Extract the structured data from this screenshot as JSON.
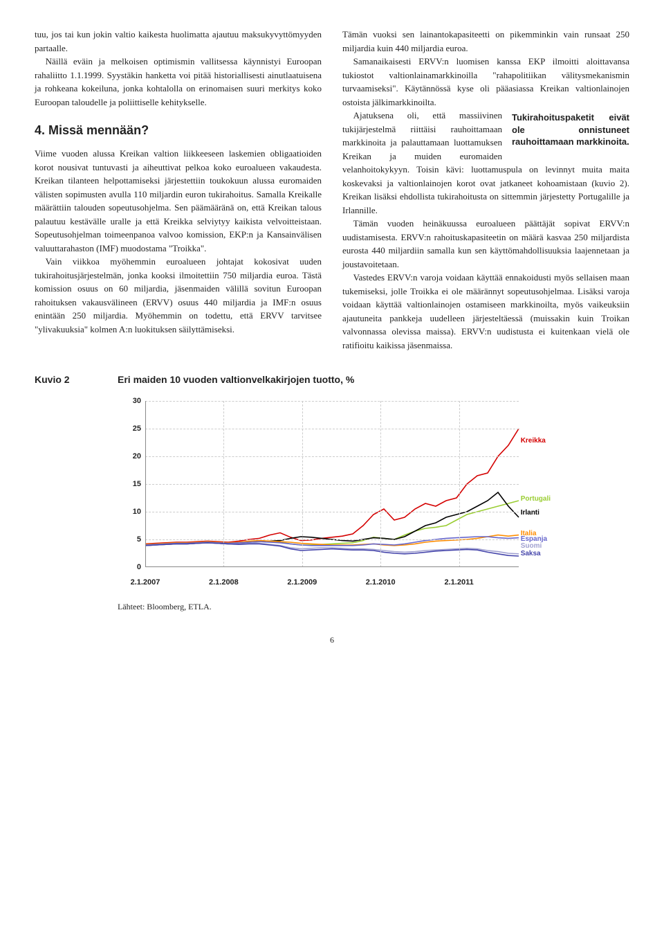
{
  "left": {
    "p1": "tuu, jos tai kun jokin valtio kaikesta huolimatta ajautuu maksukyvyttömyyden partaalle.",
    "p2": "Näillä eväin ja melkoisen optimismin vallitsessa käynnistyi Euroopan rahaliitto 1.1.1999. Syystäkin hanketta voi pitää historiallisesti ainutlaatuisena ja rohkeana kokeiluna, jonka kohtalolla on erinomaisen suuri merkitys koko Euroopan taloudelle ja poliittiselle kehitykselle.",
    "h2": "4. Missä mennään?",
    "p3": "Viime vuoden alussa Kreikan valtion liikkeeseen laskemien obligaatioiden korot nousivat tuntuvasti ja aiheuttivat pelkoa koko euroalueen vakaudesta. Kreikan tilanteen helpottamiseksi järjestettiin toukokuun alussa euromaiden välisten sopimusten avulla 110 miljardin euron tukirahoitus. Samalla Kreikalle määrättiin talouden sopeutusohjelma. Sen päämääränä on, että Kreikan talous palautuu kestävälle uralle ja että Kreikka selviytyy kaikista velvoitteistaan. Sopeutusohjelman toimeenpanoa valvoo komission, EKP:n ja Kansainvälisen valuuttarahaston (IMF) muodostama \"Troikka\".",
    "p4": "Vain viikkoa myöhemmin euroalueen johtajat kokosivat uuden tukirahoitusjärjestelmän, jonka kooksi ilmoitettiin 750 miljardia euroa. Tästä komission osuus on 60 miljardia, jäsenmaiden välillä sovitun Euroopan rahoituksen vakausvälineen (ERVV) osuus 440 miljardia ja IMF:n osuus enintään 250 miljardia. Myöhemmin on todettu, että ERVV tarvitsee \"ylivakuuksia\" kolmen A:n luokituksen säilyttämiseksi."
  },
  "right": {
    "p1": "Tämän vuoksi sen lainantokapasiteetti on pikemminkin vain runsaat 250 miljardia kuin 440 miljardia euroa.",
    "p2": "Samanaikaisesti ERVV:n luomisen kanssa EKP ilmoitti aloittavansa tukiostot valtionlainamarkkinoilla \"rahapolitiikan välitysmekanismin turvaamiseksi\". Käytännössä kyse oli pääasiassa Kreikan valtionlainojen ostoista jälkimarkkinoilta.",
    "p3a": "Ajatuksena oli, että massiivinen tukijärjestelmä riittäisi rauhoittamaan markkinoita ja palauttamaan luottamuksen Kreikan ja muiden euromaiden velanhoitokykyyn. Toisin kävi: luottamuspula on levinnyt muita maita koskevaksi ja valtionlainojen korot ovat jatkaneet kohoamistaan (kuvio 2). Kreikan lisäksi ehdollista tukirahoitusta on sittemmin järjestetty Portugalille ja Irlannille.",
    "pull": "Tukirahoituspaketit eivät ole onnistuneet rauhoittamaan markkinoita.",
    "p4": "Tämän vuoden heinäkuussa euroalueen päättäjät sopivat ERVV:n uudistamisesta. ERVV:n rahoituskapasiteetin on määrä kasvaa 250 miljardista eurosta 440 miljardiin samalla kun sen käyttömahdollisuuksia laajennetaan ja joustavoitetaan.",
    "p5": "Vastedes ERVV:n varoja voidaan käyttää ennakoidusti myös sellaisen maan tukemiseksi, jolle Troikka ei ole määrännyt sopeutusohjelmaa. Lisäksi varoja voidaan käyttää valtionlainojen ostamiseen markkinoilta, myös vaikeuksiin ajautuneita pankkeja uudelleen järjesteltäessä (muissakin kuin Troikan valvonnassa olevissa maissa). ERVV:n uudistusta ei kuitenkaan vielä ole ratifioitu kaikissa jäsenmaissa."
  },
  "figure": {
    "label": "Kuvio 2",
    "title": "Eri maiden 10 vuoden valtionvelkakirjojen tuotto, %",
    "source": "Lähteet: Bloomberg, ETLA.",
    "ylim": [
      0,
      30
    ],
    "yticks": [
      0,
      5,
      10,
      15,
      20,
      25,
      30
    ],
    "xticks": [
      "2.1.2007",
      "2.1.2008",
      "2.1.2009",
      "2.1.2010",
      "2.1.2011"
    ],
    "xtick_pos": [
      0,
      0.21,
      0.42,
      0.63,
      0.84
    ],
    "grid_color": "#cccccc",
    "axis_color": "#888888",
    "background": "#ffffff",
    "line_width": 1.6,
    "series": [
      {
        "name": "Kreikka",
        "label": "Kreikka",
        "color": "#d40000",
        "label_y": 23,
        "label_x": 1.005,
        "y": [
          4.2,
          4.3,
          4.4,
          4.5,
          4.5,
          4.6,
          4.7,
          4.6,
          4.5,
          4.7,
          5.0,
          5.2,
          5.8,
          6.2,
          5.4,
          4.8,
          4.9,
          5.2,
          5.4,
          5.6,
          6.0,
          7.5,
          9.5,
          10.5,
          8.5,
          9.0,
          10.5,
          11.5,
          11.0,
          12.0,
          12.5,
          15.0,
          16.5,
          17.0,
          20.0,
          22.0,
          25.0
        ]
      },
      {
        "name": "Portugali",
        "label": "Portugali",
        "color": "#9acd32",
        "label_y": 12.5,
        "label_x": 1.005,
        "y": [
          4.0,
          4.1,
          4.2,
          4.3,
          4.3,
          4.4,
          4.5,
          4.4,
          4.3,
          4.4,
          4.6,
          4.7,
          4.6,
          4.5,
          4.2,
          4.0,
          4.0,
          4.1,
          4.2,
          4.3,
          4.4,
          4.8,
          5.4,
          5.2,
          5.0,
          5.8,
          6.5,
          7.0,
          7.2,
          7.5,
          8.5,
          9.5,
          10.0,
          10.5,
          11.0,
          11.5,
          12.0
        ]
      },
      {
        "name": "Irlanti",
        "label": "Irlanti",
        "color": "#000000",
        "label_y": 10,
        "label_x": 1.005,
        "y": [
          3.9,
          4.0,
          4.1,
          4.2,
          4.2,
          4.3,
          4.4,
          4.3,
          4.2,
          4.3,
          4.5,
          4.6,
          4.7,
          4.8,
          5.2,
          5.5,
          5.4,
          5.2,
          5.0,
          4.8,
          4.7,
          5.0,
          5.3,
          5.2,
          5.0,
          5.5,
          6.5,
          7.5,
          8.0,
          9.0,
          9.5,
          10.0,
          11.0,
          12.0,
          13.5,
          11.0,
          9.0
        ]
      },
      {
        "name": "Italia",
        "label": "Italia",
        "color": "#ff8c00",
        "label_y": 6.2,
        "label_x": 1.005,
        "y": [
          4.1,
          4.2,
          4.3,
          4.4,
          4.4,
          4.5,
          4.6,
          4.5,
          4.4,
          4.5,
          4.7,
          4.8,
          4.7,
          4.6,
          4.5,
          4.3,
          4.2,
          4.1,
          4.0,
          4.0,
          4.0,
          4.1,
          4.2,
          4.0,
          3.9,
          4.0,
          4.2,
          4.5,
          4.7,
          4.8,
          4.9,
          5.0,
          5.2,
          5.5,
          5.8,
          5.6,
          5.8
        ]
      },
      {
        "name": "Espanja",
        "label": "Espanja",
        "color": "#6666cc",
        "label_y": 5.2,
        "label_x": 1.005,
        "y": [
          4.0,
          4.1,
          4.2,
          4.3,
          4.3,
          4.4,
          4.5,
          4.4,
          4.3,
          4.4,
          4.5,
          4.6,
          4.5,
          4.4,
          4.2,
          4.0,
          3.9,
          3.9,
          3.9,
          3.9,
          3.9,
          4.0,
          4.2,
          4.1,
          4.0,
          4.2,
          4.5,
          4.8,
          5.0,
          5.2,
          5.3,
          5.4,
          5.5,
          5.5,
          5.3,
          5.2,
          5.3
        ]
      },
      {
        "name": "Suomi",
        "label": "Suomi",
        "color": "#a0a0d0",
        "label_y": 4.0,
        "label_x": 1.005,
        "y": [
          3.9,
          4.0,
          4.1,
          4.2,
          4.2,
          4.3,
          4.4,
          4.3,
          4.2,
          4.2,
          4.3,
          4.3,
          4.1,
          3.9,
          3.5,
          3.3,
          3.4,
          3.5,
          3.5,
          3.4,
          3.3,
          3.3,
          3.2,
          3.0,
          2.8,
          2.7,
          2.8,
          3.0,
          3.1,
          3.2,
          3.3,
          3.4,
          3.3,
          3.0,
          2.8,
          2.5,
          2.4
        ]
      },
      {
        "name": "Saksa",
        "label": "Saksa",
        "color": "#4444aa",
        "label_y": 2.6,
        "label_x": 1.005,
        "y": [
          3.9,
          4.0,
          4.1,
          4.2,
          4.2,
          4.3,
          4.4,
          4.3,
          4.2,
          4.1,
          4.2,
          4.2,
          4.0,
          3.8,
          3.3,
          3.0,
          3.1,
          3.2,
          3.3,
          3.2,
          3.1,
          3.1,
          3.0,
          2.7,
          2.5,
          2.4,
          2.5,
          2.7,
          2.9,
          3.0,
          3.1,
          3.2,
          3.1,
          2.7,
          2.4,
          2.1,
          2.0
        ]
      }
    ]
  },
  "pagenum": "6"
}
